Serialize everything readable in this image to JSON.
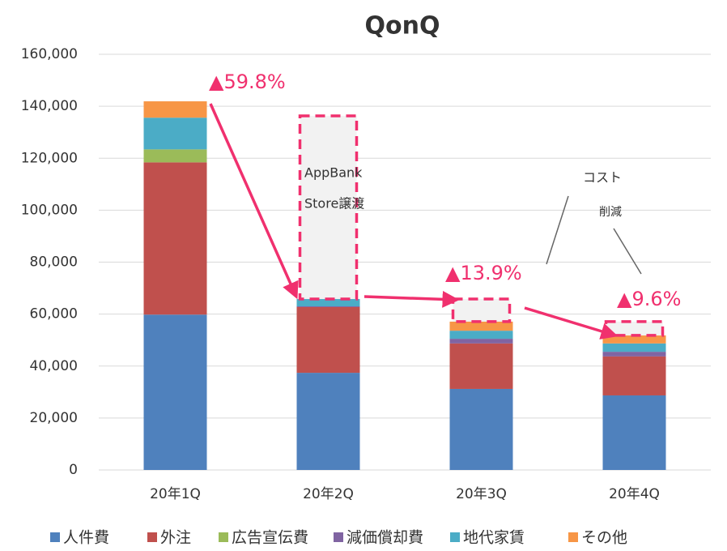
{
  "chart_data": {
    "type": "stacked_bar",
    "title": "QonQ",
    "categories": [
      "20年1Q",
      "20年2Q",
      "20年3Q",
      "20年4Q"
    ],
    "series": [
      {
        "name": "人件費",
        "color": "#4f81bd",
        "values": [
          59800,
          37400,
          31200,
          28700
        ]
      },
      {
        "name": "外注",
        "color": "#c0504d",
        "values": [
          58600,
          25300,
          17500,
          15000
        ]
      },
      {
        "name": "広告宣伝費",
        "color": "#9bbb59",
        "values": [
          5000,
          0,
          0,
          0
        ]
      },
      {
        "name": "減価償却費",
        "color": "#8064a2",
        "values": [
          0,
          300,
          1800,
          1800
        ]
      },
      {
        "name": "地代家賃",
        "color": "#4bacc6",
        "values": [
          12200,
          2800,
          3100,
          3200
        ]
      },
      {
        "name": "その他",
        "color": "#f79646",
        "values": [
          6300,
          0,
          3500,
          3100
        ]
      }
    ],
    "ylim": [
      0,
      160000
    ],
    "yticks": [
      0,
      {
        "value": 20000,
        "label": "20,000"
      },
      {
        "value": 40000,
        "label": "40,000"
      },
      {
        "value": 60000,
        "label": "60,000"
      },
      {
        "value": 80000,
        "label": "80,000"
      },
      {
        "value": 100000,
        "label": "100,000"
      },
      {
        "value": 120000,
        "label": "120,000"
      },
      {
        "value": 140000,
        "label": "140,000"
      },
      {
        "value": 160000,
        "label": "160,000"
      }
    ],
    "grid": true,
    "legend": "bottom",
    "annotations": [
      "▲59.8%",
      "AppBank",
      "Store譲渡",
      "▲13.9%",
      "コスト",
      "削減",
      "▲9.6%"
    ],
    "annotation_color": "#f0306e"
  }
}
